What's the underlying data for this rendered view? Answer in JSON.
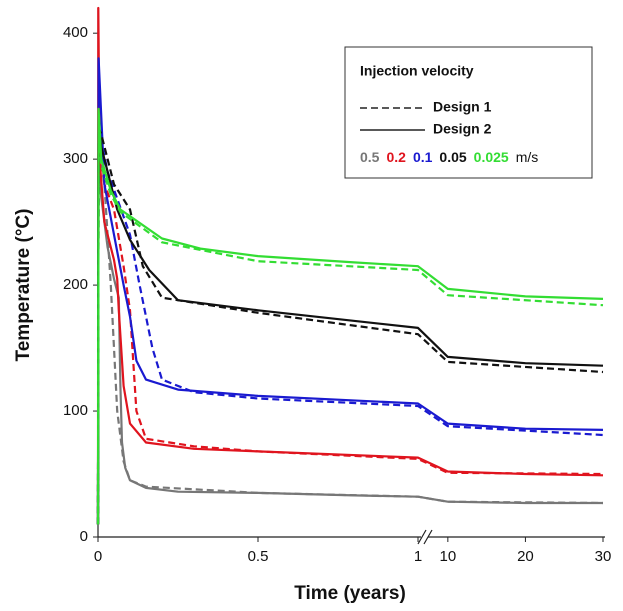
{
  "chart_data": {
    "type": "line",
    "x_label": "Time (years)",
    "y_label": "Temperature (°C)",
    "x_segments": [
      {
        "xlim": [
          0,
          1
        ],
        "xticks": [
          0,
          0.5,
          1
        ]
      },
      {
        "xlim": [
          7.7,
          30
        ],
        "xticks": [
          10,
          20,
          30
        ]
      }
    ],
    "ylim": [
      0,
      420
    ],
    "yticks": [
      0,
      100,
      200,
      300,
      400
    ],
    "grid": false,
    "legend": {
      "title": "Injection velocity",
      "designs": [
        {
          "name": "Design 1",
          "dashed": true
        },
        {
          "name": "Design 2",
          "dashed": false
        }
      ],
      "velocities": [
        {
          "label": "0.5",
          "color": "#777777"
        },
        {
          "label": "0.2",
          "color": "#e0141e"
        },
        {
          "label": "0.1",
          "color": "#1a1ad0"
        },
        {
          "label": "0.05",
          "color": "#111111"
        },
        {
          "label": "0.025",
          "color": "#33dd33"
        }
      ],
      "unit": "m/s"
    },
    "series": [
      {
        "velocity": 0,
        "design": 1,
        "x": [
          0,
          0.002,
          0.01,
          0.03,
          0.05,
          0.065,
          0.07,
          0.075,
          0.085,
          0.1,
          0.15,
          0.25,
          0.5,
          0.8,
          1.0,
          10,
          20,
          30
        ],
        "values": [
          10,
          320,
          270,
          230,
          205,
          190,
          120,
          75,
          55,
          45,
          39,
          36,
          35,
          33,
          32,
          28,
          27,
          27
        ]
      },
      {
        "velocity": 0,
        "design": 0,
        "x": [
          0,
          0.002,
          0.02,
          0.04,
          0.06,
          0.08,
          0.1,
          0.15,
          0.5,
          1.0,
          10,
          30
        ],
        "values": [
          10,
          310,
          280,
          200,
          100,
          60,
          45,
          40,
          35,
          32,
          28,
          27
        ]
      },
      {
        "velocity": 1,
        "design": 1,
        "x": [
          0,
          0.001,
          0.005,
          0.02,
          0.05,
          0.06,
          0.065,
          0.08,
          0.1,
          0.15,
          0.3,
          0.5,
          1.0,
          10,
          20,
          30
        ],
        "values": [
          10,
          420,
          300,
          250,
          220,
          205,
          180,
          120,
          90,
          75,
          70,
          68,
          63,
          52,
          50,
          49
        ]
      },
      {
        "velocity": 1,
        "design": 0,
        "x": [
          0,
          0.002,
          0.02,
          0.05,
          0.08,
          0.1,
          0.12,
          0.15,
          0.3,
          0.5,
          1.0,
          10,
          30
        ],
        "values": [
          10,
          330,
          280,
          260,
          215,
          180,
          100,
          78,
          72,
          68,
          62,
          51,
          50
        ]
      },
      {
        "velocity": 2,
        "design": 1,
        "x": [
          0,
          0.002,
          0.02,
          0.05,
          0.08,
          0.1,
          0.12,
          0.15,
          0.25,
          0.5,
          1.0,
          10,
          20,
          30
        ],
        "values": [
          10,
          380,
          280,
          240,
          200,
          175,
          140,
          125,
          117,
          112,
          106,
          90,
          86,
          85
        ]
      },
      {
        "velocity": 2,
        "design": 0,
        "x": [
          0,
          0.002,
          0.03,
          0.1,
          0.13,
          0.17,
          0.2,
          0.3,
          0.5,
          1.0,
          10,
          30
        ],
        "values": [
          10,
          325,
          290,
          240,
          200,
          150,
          125,
          115,
          110,
          104,
          88,
          81
        ]
      },
      {
        "velocity": 3,
        "design": 1,
        "x": [
          0,
          0.002,
          0.01,
          0.03,
          0.06,
          0.1,
          0.16,
          0.25,
          0.5,
          1.0,
          10,
          20,
          30
        ],
        "values": [
          10,
          330,
          310,
          290,
          260,
          236,
          212,
          188,
          180,
          166,
          143,
          138,
          136
        ]
      },
      {
        "velocity": 3,
        "design": 0,
        "x": [
          0,
          0.002,
          0.01,
          0.05,
          0.1,
          0.14,
          0.2,
          0.5,
          1.0,
          10,
          30
        ],
        "values": [
          10,
          325,
          320,
          280,
          260,
          215,
          190,
          178,
          161,
          139,
          131
        ]
      },
      {
        "velocity": 4,
        "design": 1,
        "x": [
          0,
          0.002,
          0.01,
          0.04,
          0.07,
          0.2,
          0.32,
          0.5,
          0.8,
          1.0,
          10,
          20,
          30
        ],
        "values": [
          10,
          340,
          300,
          275,
          260,
          237,
          229,
          223,
          218,
          215,
          197,
          191,
          189
        ]
      },
      {
        "velocity": 4,
        "design": 0,
        "x": [
          0,
          0.002,
          0.01,
          0.04,
          0.07,
          0.2,
          0.5,
          1.0,
          10,
          30
        ],
        "values": [
          10,
          335,
          295,
          272,
          258,
          234,
          219,
          212,
          192,
          184
        ]
      }
    ]
  }
}
